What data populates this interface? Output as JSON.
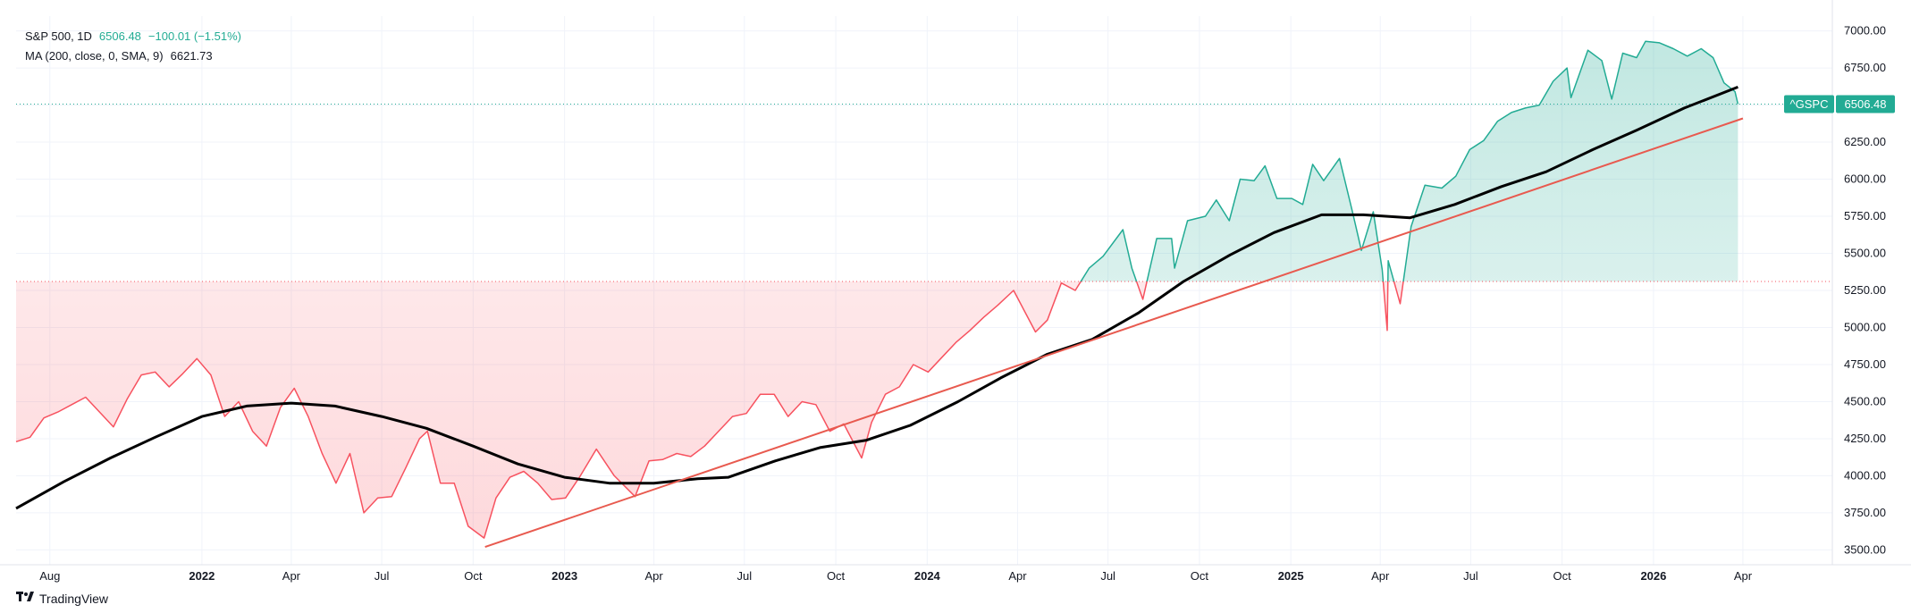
{
  "legend": {
    "symbol": "S&P 500, 1D",
    "last": "6506.48",
    "change": "−100.01 (−1.51%)",
    "ma_label": "MA (200, close, 0, SMA, 9)",
    "ma_value": "6621.73"
  },
  "brand": {
    "name": "TradingView",
    "icon": "tradingview-logo"
  },
  "colors": {
    "up": "#22ab94",
    "down": "#f7525f",
    "ma": "#000000",
    "trend": "#e85a4f",
    "grid": "#f0f3fa",
    "axis_text": "#131722",
    "baseline_up": "#22ab94",
    "baseline_down": "#f7525f"
  },
  "chart_data": {
    "type": "line",
    "title": "",
    "xlabel": "",
    "ylabel": "",
    "ylim": [
      3400,
      7100
    ],
    "xlim": [
      "2021-06-28",
      "2026-06-30"
    ],
    "y_ticks": [
      3500,
      3750,
      4000,
      4250,
      4500,
      4750,
      5000,
      5250,
      5500,
      5750,
      6000,
      6250,
      6500,
      6750,
      7000
    ],
    "y_tick_labels": [
      "3500.00",
      "3750.00",
      "4000.00",
      "4250.00",
      "4500.00",
      "4750.00",
      "5000.00",
      "5250.00",
      "5500.00",
      "5750.00",
      "6000.00",
      "6250.00",
      "6500.00",
      "6750.00",
      "7000.00"
    ],
    "x_ticks": [
      {
        "label": "Aug",
        "date": "2021-08-01",
        "bold": false
      },
      {
        "label": "2022",
        "date": "2022-01-01",
        "bold": true
      },
      {
        "label": "Apr",
        "date": "2022-04-01",
        "bold": false
      },
      {
        "label": "Jul",
        "date": "2022-07-01",
        "bold": false
      },
      {
        "label": "Oct",
        "date": "2022-10-01",
        "bold": false
      },
      {
        "label": "2023",
        "date": "2023-01-01",
        "bold": true
      },
      {
        "label": "Apr",
        "date": "2023-04-01",
        "bold": false
      },
      {
        "label": "Jul",
        "date": "2023-07-01",
        "bold": false
      },
      {
        "label": "Oct",
        "date": "2023-10-01",
        "bold": false
      },
      {
        "label": "2024",
        "date": "2024-01-01",
        "bold": true
      },
      {
        "label": "Apr",
        "date": "2024-04-01",
        "bold": false
      },
      {
        "label": "Jul",
        "date": "2024-07-01",
        "bold": false
      },
      {
        "label": "Oct",
        "date": "2024-10-01",
        "bold": false
      },
      {
        "label": "2025",
        "date": "2025-01-01",
        "bold": true
      },
      {
        "label": "Apr",
        "date": "2025-04-01",
        "bold": false
      },
      {
        "label": "Jul",
        "date": "2025-07-01",
        "bold": false
      },
      {
        "label": "Oct",
        "date": "2025-10-01",
        "bold": false
      },
      {
        "label": "2026",
        "date": "2026-01-01",
        "bold": true
      },
      {
        "label": "Apr",
        "date": "2026-04-01",
        "bold": false
      }
    ],
    "baseline": 5310,
    "grid": true,
    "series": [
      {
        "name": "S&P 500",
        "style": "baseline",
        "points": [
          [
            "2021-06-28",
            4230
          ],
          [
            "2021-07-12",
            4260
          ],
          [
            "2021-07-26",
            4390
          ],
          [
            "2021-08-09",
            4430
          ],
          [
            "2021-08-23",
            4480
          ],
          [
            "2021-09-06",
            4530
          ],
          [
            "2021-09-20",
            4430
          ],
          [
            "2021-10-04",
            4330
          ],
          [
            "2021-10-18",
            4520
          ],
          [
            "2021-11-01",
            4680
          ],
          [
            "2021-11-15",
            4700
          ],
          [
            "2021-11-29",
            4600
          ],
          [
            "2021-12-13",
            4690
          ],
          [
            "2021-12-27",
            4790
          ],
          [
            "2022-01-10",
            4680
          ],
          [
            "2022-01-24",
            4400
          ],
          [
            "2022-02-07",
            4500
          ],
          [
            "2022-02-21",
            4300
          ],
          [
            "2022-03-07",
            4200
          ],
          [
            "2022-03-21",
            4460
          ],
          [
            "2022-04-04",
            4590
          ],
          [
            "2022-04-18",
            4400
          ],
          [
            "2022-05-02",
            4150
          ],
          [
            "2022-05-16",
            3950
          ],
          [
            "2022-05-30",
            4150
          ],
          [
            "2022-06-13",
            3750
          ],
          [
            "2022-06-27",
            3850
          ],
          [
            "2022-07-11",
            3860
          ],
          [
            "2022-07-25",
            4050
          ],
          [
            "2022-08-08",
            4250
          ],
          [
            "2022-08-16",
            4300
          ],
          [
            "2022-08-29",
            3950
          ],
          [
            "2022-09-12",
            3950
          ],
          [
            "2022-09-26",
            3660
          ],
          [
            "2022-10-12",
            3580
          ],
          [
            "2022-10-24",
            3850
          ],
          [
            "2022-11-07",
            3990
          ],
          [
            "2022-11-21",
            4030
          ],
          [
            "2022-12-05",
            3950
          ],
          [
            "2022-12-19",
            3840
          ],
          [
            "2023-01-02",
            3850
          ],
          [
            "2023-01-16",
            3990
          ],
          [
            "2023-02-02",
            4180
          ],
          [
            "2023-02-20",
            4000
          ],
          [
            "2023-03-13",
            3860
          ],
          [
            "2023-03-27",
            4100
          ],
          [
            "2023-04-10",
            4110
          ],
          [
            "2023-04-24",
            4150
          ],
          [
            "2023-05-08",
            4130
          ],
          [
            "2023-05-22",
            4200
          ],
          [
            "2023-06-05",
            4300
          ],
          [
            "2023-06-19",
            4400
          ],
          [
            "2023-07-03",
            4420
          ],
          [
            "2023-07-17",
            4550
          ],
          [
            "2023-07-31",
            4550
          ],
          [
            "2023-08-14",
            4400
          ],
          [
            "2023-08-28",
            4500
          ],
          [
            "2023-09-11",
            4480
          ],
          [
            "2023-09-25",
            4300
          ],
          [
            "2023-10-09",
            4350
          ],
          [
            "2023-10-27",
            4120
          ],
          [
            "2023-11-06",
            4360
          ],
          [
            "2023-11-20",
            4550
          ],
          [
            "2023-12-04",
            4600
          ],
          [
            "2023-12-18",
            4750
          ],
          [
            "2024-01-02",
            4700
          ],
          [
            "2024-01-16",
            4800
          ],
          [
            "2024-01-30",
            4900
          ],
          [
            "2024-02-13",
            4980
          ],
          [
            "2024-02-27",
            5070
          ],
          [
            "2024-03-12",
            5150
          ],
          [
            "2024-03-28",
            5250
          ],
          [
            "2024-04-19",
            4970
          ],
          [
            "2024-05-01",
            5050
          ],
          [
            "2024-05-15",
            5300
          ],
          [
            "2024-05-29",
            5250
          ],
          [
            "2024-06-12",
            5400
          ],
          [
            "2024-06-26",
            5480
          ],
          [
            "2024-07-16",
            5660
          ],
          [
            "2024-07-25",
            5400
          ],
          [
            "2024-08-05",
            5190
          ],
          [
            "2024-08-19",
            5600
          ],
          [
            "2024-09-03",
            5600
          ],
          [
            "2024-09-06",
            5400
          ],
          [
            "2024-09-19",
            5720
          ],
          [
            "2024-10-07",
            5750
          ],
          [
            "2024-10-18",
            5860
          ],
          [
            "2024-10-31",
            5720
          ],
          [
            "2024-11-11",
            6000
          ],
          [
            "2024-11-25",
            5990
          ],
          [
            "2024-12-06",
            6090
          ],
          [
            "2024-12-18",
            5870
          ],
          [
            "2025-01-02",
            5870
          ],
          [
            "2025-01-13",
            5830
          ],
          [
            "2025-01-23",
            6100
          ],
          [
            "2025-02-03",
            5990
          ],
          [
            "2025-02-19",
            6140
          ],
          [
            "2025-03-04",
            5780
          ],
          [
            "2025-03-13",
            5520
          ],
          [
            "2025-03-25",
            5780
          ],
          [
            "2025-04-03",
            5390
          ],
          [
            "2025-04-08",
            4980
          ],
          [
            "2025-04-09",
            5450
          ],
          [
            "2025-04-21",
            5160
          ],
          [
            "2025-05-02",
            5680
          ],
          [
            "2025-05-16",
            5960
          ],
          [
            "2025-06-02",
            5940
          ],
          [
            "2025-06-16",
            6020
          ],
          [
            "2025-06-30",
            6200
          ],
          [
            "2025-07-14",
            6260
          ],
          [
            "2025-07-28",
            6390
          ],
          [
            "2025-08-11",
            6450
          ],
          [
            "2025-08-25",
            6480
          ],
          [
            "2025-09-08",
            6500
          ],
          [
            "2025-09-22",
            6660
          ],
          [
            "2025-10-06",
            6750
          ],
          [
            "2025-10-10",
            6550
          ],
          [
            "2025-10-27",
            6870
          ],
          [
            "2025-11-10",
            6800
          ],
          [
            "2025-11-20",
            6540
          ],
          [
            "2025-12-01",
            6850
          ],
          [
            "2025-12-15",
            6820
          ],
          [
            "2025-12-24",
            6930
          ],
          [
            "2026-01-07",
            6920
          ],
          [
            "2026-01-21",
            6880
          ],
          [
            "2026-02-04",
            6830
          ],
          [
            "2026-02-18",
            6880
          ],
          [
            "2026-03-02",
            6820
          ],
          [
            "2026-03-13",
            6650
          ],
          [
            "2026-03-24",
            6590
          ],
          [
            "2026-03-27",
            6506.48
          ]
        ]
      },
      {
        "name": "MA (200, close, 0, SMA, 9)",
        "style": "line",
        "points": [
          [
            "2021-06-28",
            3780
          ],
          [
            "2021-08-15",
            3960
          ],
          [
            "2021-10-01",
            4120
          ],
          [
            "2021-11-15",
            4260
          ],
          [
            "2022-01-01",
            4400
          ],
          [
            "2022-02-15",
            4470
          ],
          [
            "2022-04-01",
            4490
          ],
          [
            "2022-05-15",
            4470
          ],
          [
            "2022-07-01",
            4400
          ],
          [
            "2022-08-15",
            4320
          ],
          [
            "2022-10-01",
            4200
          ],
          [
            "2022-11-15",
            4080
          ],
          [
            "2023-01-01",
            3990
          ],
          [
            "2023-02-15",
            3950
          ],
          [
            "2023-04-01",
            3950
          ],
          [
            "2023-05-15",
            3980
          ],
          [
            "2023-06-15",
            3990
          ],
          [
            "2023-08-01",
            4100
          ],
          [
            "2023-09-15",
            4190
          ],
          [
            "2023-11-01",
            4240
          ],
          [
            "2023-12-15",
            4340
          ],
          [
            "2024-02-01",
            4500
          ],
          [
            "2024-03-15",
            4660
          ],
          [
            "2024-05-01",
            4820
          ],
          [
            "2024-06-15",
            4920
          ],
          [
            "2024-08-01",
            5100
          ],
          [
            "2024-09-15",
            5310
          ],
          [
            "2024-11-01",
            5490
          ],
          [
            "2024-12-15",
            5640
          ],
          [
            "2025-02-01",
            5760
          ],
          [
            "2025-03-15",
            5760
          ],
          [
            "2025-05-01",
            5740
          ],
          [
            "2025-06-15",
            5830
          ],
          [
            "2025-08-01",
            5950
          ],
          [
            "2025-09-15",
            6050
          ],
          [
            "2025-11-01",
            6200
          ],
          [
            "2025-12-15",
            6330
          ],
          [
            "2026-02-01",
            6480
          ],
          [
            "2026-03-27",
            6621.73
          ]
        ]
      },
      {
        "name": "Trend line",
        "style": "line",
        "points": [
          [
            "2022-10-13",
            3520
          ],
          [
            "2026-04-01",
            6410
          ]
        ]
      }
    ]
  },
  "price_tag": {
    "ticker": "^GSPC",
    "value": "6506.48"
  }
}
